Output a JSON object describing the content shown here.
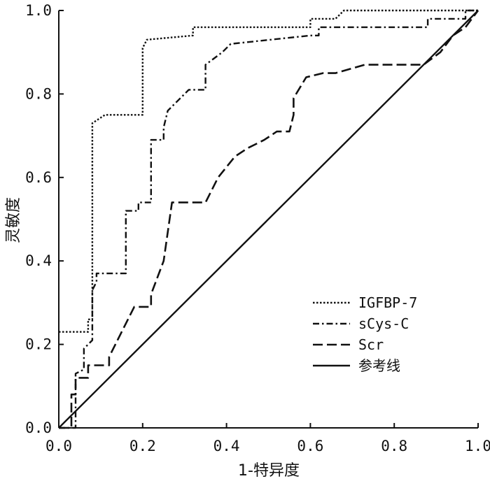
{
  "chart_data": {
    "type": "line",
    "title": "",
    "xlabel": "1-特异度",
    "ylabel": "灵敏度",
    "xlim": [
      0,
      1
    ],
    "ylim": [
      0,
      1
    ],
    "x_ticks": [
      "0.0",
      "0.2",
      "0.4",
      "0.6",
      "0.8",
      "1.0"
    ],
    "y_ticks": [
      "0.0",
      "0.2",
      "0.4",
      "0.6",
      "0.8",
      "1.0"
    ],
    "grid": false,
    "legend_position": "lower-right",
    "series": [
      {
        "name": "IGFBP-7",
        "style": "dotted",
        "points": [
          [
            0,
            0.23
          ],
          [
            0.07,
            0.23
          ],
          [
            0.07,
            0.26
          ],
          [
            0.08,
            0.26
          ],
          [
            0.08,
            0.73
          ],
          [
            0.11,
            0.75
          ],
          [
            0.2,
            0.75
          ],
          [
            0.2,
            0.91
          ],
          [
            0.21,
            0.93
          ],
          [
            0.32,
            0.94
          ],
          [
            0.32,
            0.96
          ],
          [
            0.6,
            0.96
          ],
          [
            0.6,
            0.98
          ],
          [
            0.66,
            0.98
          ],
          [
            0.68,
            1.0
          ],
          [
            1,
            1.0
          ]
        ]
      },
      {
        "name": "sCys-C",
        "style": "dash-dot",
        "points": [
          [
            0,
            0.0
          ],
          [
            0.04,
            0.0
          ],
          [
            0.04,
            0.13
          ],
          [
            0.06,
            0.14
          ],
          [
            0.06,
            0.19
          ],
          [
            0.08,
            0.21
          ],
          [
            0.08,
            0.33
          ],
          [
            0.09,
            0.35
          ],
          [
            0.09,
            0.37
          ],
          [
            0.16,
            0.37
          ],
          [
            0.16,
            0.52
          ],
          [
            0.19,
            0.52
          ],
          [
            0.19,
            0.54
          ],
          [
            0.22,
            0.54
          ],
          [
            0.22,
            0.69
          ],
          [
            0.25,
            0.69
          ],
          [
            0.25,
            0.72
          ],
          [
            0.26,
            0.76
          ],
          [
            0.31,
            0.81
          ],
          [
            0.35,
            0.81
          ],
          [
            0.35,
            0.87
          ],
          [
            0.39,
            0.9
          ],
          [
            0.41,
            0.92
          ],
          [
            0.6,
            0.94
          ],
          [
            0.62,
            0.94
          ],
          [
            0.62,
            0.96
          ],
          [
            0.88,
            0.96
          ],
          [
            0.88,
            0.98
          ],
          [
            0.97,
            0.98
          ],
          [
            0.97,
            1.0
          ],
          [
            1,
            1.0
          ]
        ]
      },
      {
        "name": "Scr",
        "style": "dashed",
        "points": [
          [
            0,
            0.0
          ],
          [
            0.03,
            0.0
          ],
          [
            0.03,
            0.08
          ],
          [
            0.04,
            0.08
          ],
          [
            0.04,
            0.12
          ],
          [
            0.07,
            0.12
          ],
          [
            0.07,
            0.15
          ],
          [
            0.12,
            0.15
          ],
          [
            0.12,
            0.17
          ],
          [
            0.16,
            0.25
          ],
          [
            0.18,
            0.29
          ],
          [
            0.22,
            0.29
          ],
          [
            0.22,
            0.32
          ],
          [
            0.25,
            0.4
          ],
          [
            0.27,
            0.54
          ],
          [
            0.35,
            0.54
          ],
          [
            0.38,
            0.6
          ],
          [
            0.42,
            0.65
          ],
          [
            0.45,
            0.67
          ],
          [
            0.49,
            0.69
          ],
          [
            0.52,
            0.71
          ],
          [
            0.55,
            0.71
          ],
          [
            0.56,
            0.75
          ],
          [
            0.56,
            0.79
          ],
          [
            0.59,
            0.84
          ],
          [
            0.63,
            0.85
          ],
          [
            0.66,
            0.85
          ],
          [
            0.73,
            0.87
          ],
          [
            0.87,
            0.87
          ],
          [
            0.91,
            0.9
          ],
          [
            0.94,
            0.94
          ],
          [
            0.97,
            0.96
          ],
          [
            1,
            1.0
          ]
        ]
      },
      {
        "name": "参考线",
        "style": "solid",
        "points": [
          [
            0,
            0
          ],
          [
            1,
            1
          ]
        ]
      }
    ]
  }
}
